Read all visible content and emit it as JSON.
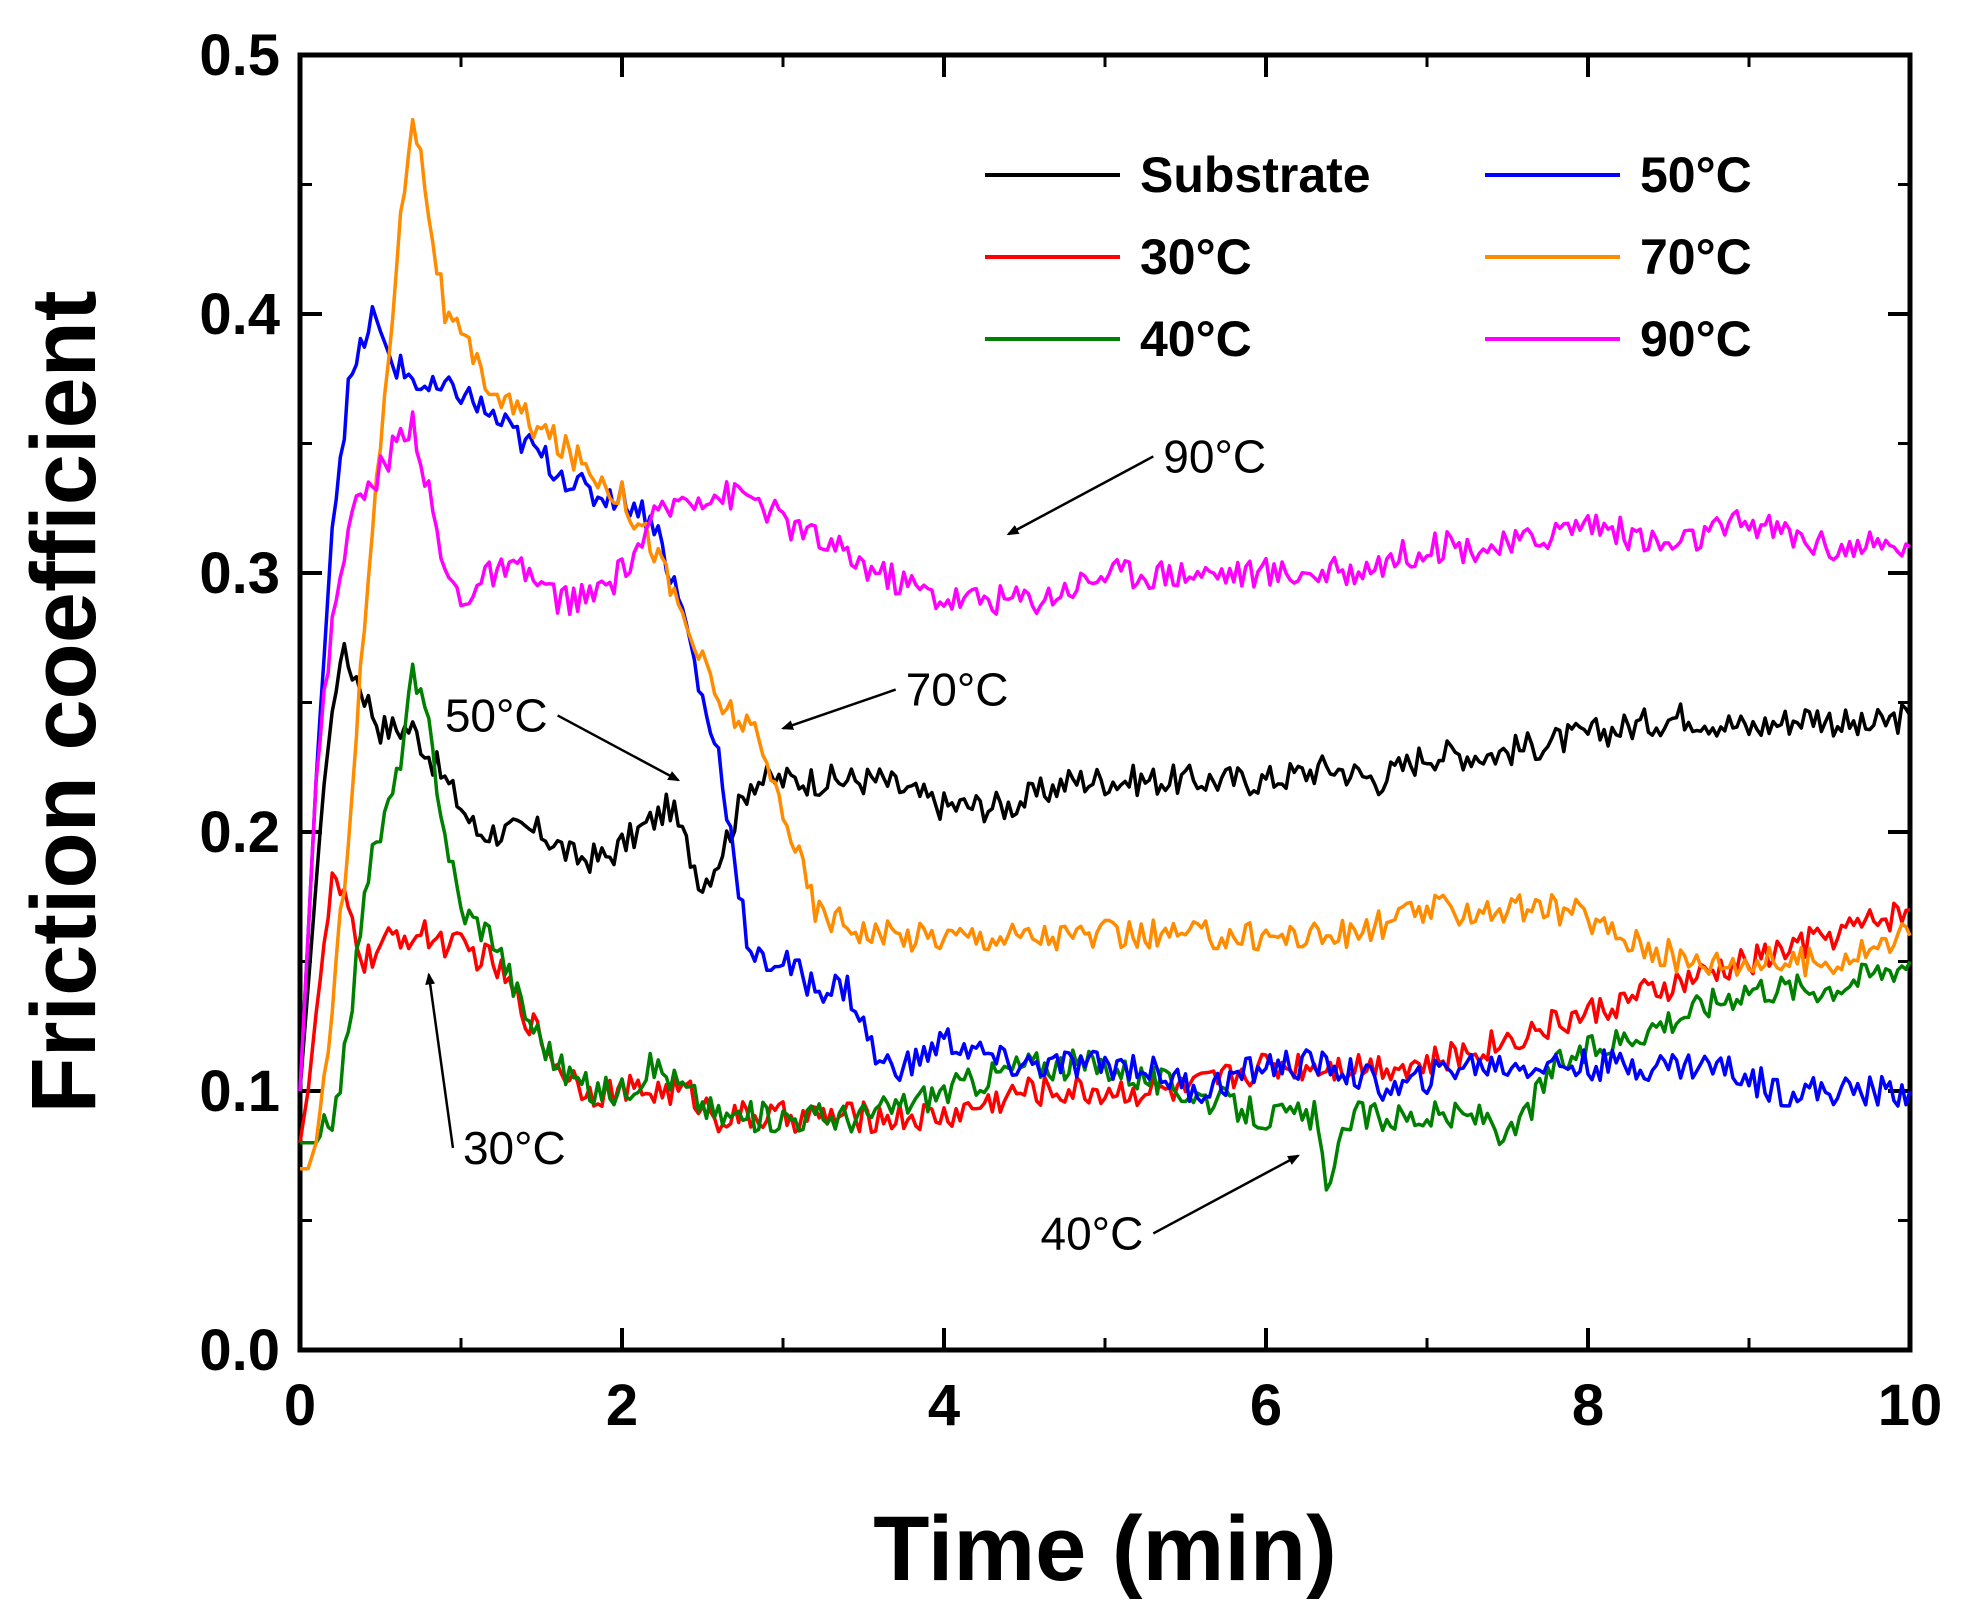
{
  "chart_data": {
    "type": "line",
    "title": "",
    "xlabel": "Time (min)",
    "ylabel": "Friction coefficient",
    "xlim": [
      0,
      10
    ],
    "ylim": [
      0.0,
      0.5
    ],
    "xticks": [
      0,
      2,
      4,
      6,
      8,
      10
    ],
    "xtick_labels": [
      "0",
      "2",
      "4",
      "6",
      "8",
      "10"
    ],
    "yticks": [
      0.0,
      0.1,
      0.2,
      0.3,
      0.4,
      0.5
    ],
    "ytick_labels": [
      "0.0",
      "0.1",
      "0.2",
      "0.3",
      "0.4",
      "0.5"
    ],
    "grid": false,
    "legend_position": "top-right",
    "series": [
      {
        "name": "Substrate",
        "label": "Substrate",
        "color": "#000000",
        "x": [
          0.0,
          0.05,
          0.15,
          0.25,
          0.35,
          0.5,
          0.7,
          0.9,
          1.1,
          1.3,
          1.5,
          1.7,
          1.9,
          2.1,
          2.3,
          2.5,
          2.6,
          2.8,
          3.0,
          3.3,
          3.6,
          4.0,
          4.4,
          4.8,
          5.2,
          5.6,
          6.0,
          6.4,
          6.7,
          7.0,
          7.4,
          7.8,
          8.2,
          8.6,
          9.0,
          9.4,
          9.7,
          10.0
        ],
        "y": [
          0.1,
          0.14,
          0.22,
          0.27,
          0.26,
          0.24,
          0.24,
          0.22,
          0.2,
          0.2,
          0.2,
          0.19,
          0.19,
          0.2,
          0.21,
          0.18,
          0.19,
          0.22,
          0.22,
          0.22,
          0.22,
          0.21,
          0.21,
          0.22,
          0.22,
          0.22,
          0.22,
          0.225,
          0.22,
          0.23,
          0.23,
          0.235,
          0.24,
          0.245,
          0.24,
          0.245,
          0.24,
          0.245
        ]
      },
      {
        "name": "30°C",
        "label": "30°C",
        "color": "#ff0000",
        "x": [
          0.0,
          0.05,
          0.1,
          0.2,
          0.3,
          0.4,
          0.6,
          0.8,
          1.0,
          1.2,
          1.4,
          1.6,
          1.8,
          2.0,
          2.2,
          2.4,
          2.6,
          2.8,
          3.0,
          3.5,
          4.0,
          4.5,
          5.0,
          5.5,
          6.0,
          6.5,
          7.0,
          7.5,
          8.0,
          8.5,
          9.0,
          9.5,
          10.0
        ],
        "y": [
          0.08,
          0.1,
          0.13,
          0.18,
          0.17,
          0.15,
          0.16,
          0.16,
          0.155,
          0.15,
          0.13,
          0.11,
          0.1,
          0.1,
          0.1,
          0.1,
          0.09,
          0.09,
          0.09,
          0.09,
          0.09,
          0.1,
          0.1,
          0.1,
          0.11,
          0.11,
          0.11,
          0.12,
          0.13,
          0.14,
          0.15,
          0.16,
          0.17
        ]
      },
      {
        "name": "40°C",
        "label": "40°C",
        "color": "#008000",
        "x": [
          0.0,
          0.1,
          0.2,
          0.3,
          0.4,
          0.5,
          0.6,
          0.7,
          0.8,
          0.9,
          1.0,
          1.2,
          1.4,
          1.6,
          1.8,
          2.0,
          2.2,
          2.4,
          2.6,
          2.8,
          3.0,
          3.5,
          4.0,
          4.5,
          5.0,
          5.5,
          6.0,
          6.3,
          6.4,
          6.5,
          7.0,
          7.4,
          7.5,
          7.8,
          8.2,
          8.6,
          9.0,
          9.5,
          10.0
        ],
        "y": [
          0.08,
          0.08,
          0.09,
          0.12,
          0.18,
          0.2,
          0.22,
          0.26,
          0.24,
          0.2,
          0.17,
          0.16,
          0.13,
          0.11,
          0.1,
          0.1,
          0.11,
          0.1,
          0.09,
          0.09,
          0.09,
          0.09,
          0.1,
          0.11,
          0.11,
          0.1,
          0.09,
          0.09,
          0.06,
          0.09,
          0.09,
          0.09,
          0.08,
          0.11,
          0.12,
          0.13,
          0.14,
          0.14,
          0.15
        ]
      },
      {
        "name": "50°C",
        "label": "50°C",
        "color": "#0000ff",
        "x": [
          0.0,
          0.1,
          0.2,
          0.3,
          0.4,
          0.45,
          0.5,
          0.6,
          0.8,
          1.0,
          1.2,
          1.4,
          1.6,
          1.8,
          2.0,
          2.2,
          2.4,
          2.5,
          2.6,
          2.7,
          2.8,
          3.0,
          3.2,
          3.4,
          3.6,
          3.8,
          4.0,
          4.4,
          4.8,
          5.2,
          5.6,
          6.0,
          6.4,
          6.8,
          7.2,
          7.6,
          8.0,
          8.4,
          8.8,
          9.2,
          9.6,
          10.0
        ],
        "y": [
          0.1,
          0.22,
          0.32,
          0.37,
          0.39,
          0.4,
          0.39,
          0.38,
          0.37,
          0.37,
          0.36,
          0.35,
          0.34,
          0.33,
          0.33,
          0.32,
          0.28,
          0.25,
          0.23,
          0.19,
          0.15,
          0.15,
          0.14,
          0.14,
          0.11,
          0.11,
          0.12,
          0.11,
          0.11,
          0.11,
          0.1,
          0.11,
          0.11,
          0.1,
          0.11,
          0.11,
          0.11,
          0.11,
          0.11,
          0.1,
          0.1,
          0.1
        ]
      },
      {
        "name": "70°C",
        "label": "70°C",
        "color": "#ff8c00",
        "x": [
          0.0,
          0.05,
          0.1,
          0.2,
          0.3,
          0.4,
          0.5,
          0.6,
          0.7,
          0.8,
          0.9,
          1.0,
          1.2,
          1.4,
          1.6,
          1.8,
          2.0,
          2.2,
          2.4,
          2.6,
          2.8,
          3.0,
          3.2,
          3.6,
          4.0,
          4.5,
          5.0,
          5.5,
          6.0,
          6.5,
          7.0,
          7.5,
          7.9,
          8.2,
          8.6,
          9.0,
          9.5,
          10.0
        ],
        "y": [
          0.07,
          0.07,
          0.08,
          0.13,
          0.2,
          0.28,
          0.35,
          0.42,
          0.48,
          0.44,
          0.4,
          0.39,
          0.37,
          0.36,
          0.35,
          0.34,
          0.33,
          0.31,
          0.28,
          0.25,
          0.24,
          0.21,
          0.17,
          0.16,
          0.16,
          0.16,
          0.16,
          0.16,
          0.16,
          0.16,
          0.17,
          0.17,
          0.17,
          0.16,
          0.15,
          0.15,
          0.15,
          0.16
        ]
      },
      {
        "name": "90°C",
        "label": "90°C",
        "color": "#ff00ff",
        "x": [
          0.0,
          0.1,
          0.2,
          0.3,
          0.4,
          0.5,
          0.6,
          0.7,
          0.8,
          0.9,
          1.0,
          1.2,
          1.4,
          1.6,
          1.8,
          2.0,
          2.2,
          2.4,
          2.6,
          2.8,
          3.0,
          3.3,
          3.6,
          4.0,
          4.3,
          4.6,
          5.0,
          5.5,
          6.0,
          6.5,
          7.0,
          7.5,
          8.0,
          8.5,
          9.0,
          9.5,
          10.0
        ],
        "y": [
          0.1,
          0.22,
          0.28,
          0.32,
          0.33,
          0.34,
          0.35,
          0.36,
          0.33,
          0.3,
          0.29,
          0.3,
          0.3,
          0.29,
          0.29,
          0.3,
          0.32,
          0.33,
          0.33,
          0.33,
          0.32,
          0.31,
          0.3,
          0.29,
          0.29,
          0.29,
          0.3,
          0.3,
          0.3,
          0.3,
          0.31,
          0.31,
          0.32,
          0.31,
          0.32,
          0.31,
          0.31
        ]
      }
    ],
    "annotations": [
      {
        "text": "90°C",
        "target": [
          4.4,
          0.315
        ],
        "label_at": [
          5.3,
          0.345
        ]
      },
      {
        "text": "70°C",
        "target": [
          3.0,
          0.24
        ],
        "label_at": [
          3.7,
          0.255
        ]
      },
      {
        "text": "50°C",
        "target": [
          2.35,
          0.22
        ],
        "label_at": [
          1.6,
          0.245
        ]
      },
      {
        "text": "30°C",
        "target": [
          0.8,
          0.145
        ],
        "label_at": [
          0.95,
          0.078
        ]
      },
      {
        "text": "40°C",
        "target": [
          6.2,
          0.075
        ],
        "label_at": [
          5.3,
          0.045
        ]
      }
    ]
  }
}
